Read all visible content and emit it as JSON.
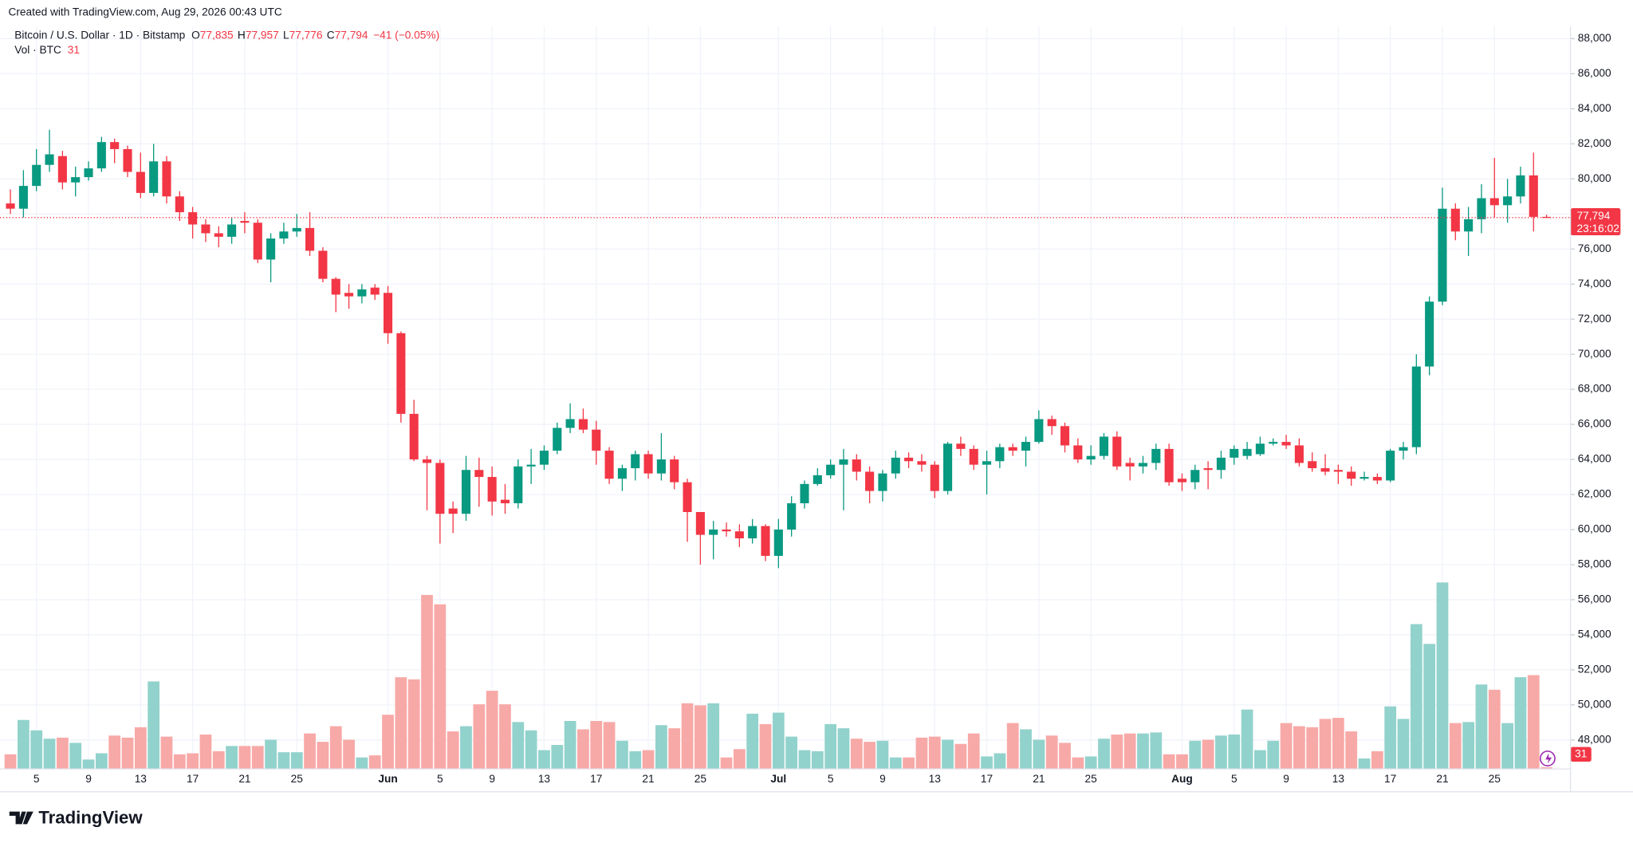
{
  "header": {
    "credit": "Created with TradingView.com, Aug 29, 2026 00:43 UTC"
  },
  "legend": {
    "symbol": "Bitcoin / U.S. Dollar · 1D · Bitstamp",
    "ohlc": [
      {
        "label": "O",
        "value": "77,835"
      },
      {
        "label": "H",
        "value": "77,957"
      },
      {
        "label": "L",
        "value": "77,776"
      },
      {
        "label": "C",
        "value": "77,794"
      }
    ],
    "change": "−41 (−0.05%)",
    "volume_name": "Vol · BTC",
    "volume_value": "31"
  },
  "price_tag": {
    "price": "77,794",
    "countdown": "23:16:02"
  },
  "volume_tag": "31",
  "logo": "TradingView",
  "chart_data": {
    "type": "candlestick",
    "up_color": "#089981",
    "down_color": "#f23645",
    "volume_up_color": "#92d2cc",
    "volume_down_color": "#f7a9a7",
    "ylim": [
      46350,
      88710
    ],
    "yticks": [
      {
        "value": 48000,
        "label": "48,000"
      },
      {
        "value": 50000,
        "label": "50,000"
      },
      {
        "value": 52000,
        "label": "52,000"
      },
      {
        "value": 54000,
        "label": "54,000"
      },
      {
        "value": 56000,
        "label": "56,000"
      },
      {
        "value": 58000,
        "label": "58,000"
      },
      {
        "value": 60000,
        "label": "60,000"
      },
      {
        "value": 62000,
        "label": "62,000"
      },
      {
        "value": 64000,
        "label": "64,000"
      },
      {
        "value": 66000,
        "label": "66,000"
      },
      {
        "value": 68000,
        "label": "68,000"
      },
      {
        "value": 70000,
        "label": "70,000"
      },
      {
        "value": 72000,
        "label": "72,000"
      },
      {
        "value": 74000,
        "label": "74,000"
      },
      {
        "value": 76000,
        "label": "76,000"
      },
      {
        "value": 78000,
        "label": "78,000"
      },
      {
        "value": 80000,
        "label": "80,000"
      },
      {
        "value": 82000,
        "label": "82,000"
      },
      {
        "value": 84000,
        "label": "84,000"
      },
      {
        "value": 86000,
        "label": "86,000"
      },
      {
        "value": 88000,
        "label": "88,000"
      }
    ],
    "volume_lim": [
      0,
      14260
    ],
    "grid": true,
    "categories": [
      null,
      null,
      "5",
      null,
      null,
      null,
      "9",
      null,
      null,
      null,
      "13",
      null,
      null,
      null,
      "17",
      null,
      null,
      null,
      "21",
      null,
      null,
      null,
      "25",
      null,
      null,
      null,
      null,
      null,
      null,
      "Jun",
      null,
      null,
      null,
      "5",
      null,
      null,
      null,
      "9",
      null,
      null,
      null,
      "13",
      null,
      null,
      null,
      "17",
      null,
      null,
      null,
      "21",
      null,
      null,
      null,
      "25",
      null,
      null,
      null,
      null,
      null,
      "Jul",
      null,
      null,
      null,
      "5",
      null,
      null,
      null,
      "9",
      null,
      null,
      null,
      "13",
      null,
      null,
      null,
      "17",
      null,
      null,
      null,
      "21",
      null,
      null,
      null,
      "25",
      null,
      null,
      null,
      null,
      null,
      null,
      "Aug",
      null,
      null,
      null,
      "5",
      null,
      null,
      null,
      "9",
      null,
      null,
      null,
      "13",
      null,
      null,
      null,
      "17",
      null,
      null,
      null,
      "21",
      null,
      null,
      null,
      "25",
      null,
      null,
      null,
      null
    ],
    "open": [
      78600,
      78300,
      79600,
      80800,
      81300,
      79800,
      80100,
      80600,
      82100,
      81700,
      80400,
      79200,
      81000,
      79000,
      78100,
      77400,
      76900,
      76700,
      77600,
      77500,
      75400,
      76600,
      77000,
      77200,
      75900,
      74300,
      73500,
      73300,
      73800,
      73500,
      71200,
      66600,
      64000,
      63800,
      61200,
      60900,
      63400,
      63000,
      61700,
      61500,
      63600,
      63700,
      64500,
      65800,
      66300,
      65700,
      64500,
      62900,
      63500,
      64300,
      63200,
      64000,
      62700,
      61000,
      59700,
      60000,
      59900,
      59500,
      60200,
      58500,
      60000,
      61500,
      62600,
      63100,
      63700,
      64000,
      63300,
      62200,
      63200,
      64100,
      63900,
      63700,
      62200,
      64900,
      64600,
      63700,
      63900,
      64700,
      64500,
      65000,
      66300,
      65900,
      64800,
      64000,
      64200,
      65300,
      63800,
      63600,
      63800,
      64600,
      62900,
      62700,
      63500,
      63400,
      64100,
      64200,
      64300,
      64900,
      65000,
      64800,
      63900,
      63500,
      63400,
      63300,
      62900,
      63000,
      62800,
      64500,
      64700,
      69300,
      73000,
      78300,
      77000,
      77700,
      78900,
      78500,
      79000,
      80200,
      77835
    ],
    "high": [
      79400,
      80500,
      81700,
      82800,
      81600,
      80700,
      81000,
      82400,
      82300,
      81900,
      81500,
      82000,
      81300,
      79300,
      78400,
      77700,
      77300,
      77800,
      78100,
      77700,
      76900,
      77500,
      78000,
      78100,
      76100,
      74400,
      74000,
      74000,
      74000,
      73900,
      71300,
      67400,
      64200,
      64000,
      61600,
      64200,
      64100,
      63600,
      62600,
      64000,
      64600,
      64800,
      66100,
      67200,
      66900,
      66200,
      64700,
      63700,
      64500,
      64500,
      65500,
      64200,
      62900,
      61000,
      60500,
      60400,
      60300,
      60600,
      60300,
      60600,
      61900,
      62800,
      63500,
      64000,
      64600,
      64300,
      63600,
      63400,
      64500,
      64400,
      64300,
      63900,
      65000,
      65300,
      64800,
      64500,
      64900,
      64900,
      65300,
      66800,
      66500,
      66100,
      65200,
      64800,
      65500,
      65600,
      64100,
      64200,
      64900,
      64900,
      63200,
      63700,
      63900,
      64500,
      64800,
      65000,
      65300,
      65200,
      65400,
      65200,
      64400,
      64300,
      63700,
      63600,
      63300,
      63200,
      64600,
      65000,
      70000,
      73300,
      79500,
      78600,
      78400,
      79700,
      81200,
      80000,
      80700,
      81500,
      77957
    ],
    "low": [
      78000,
      77800,
      79300,
      80400,
      79400,
      79000,
      79900,
      80400,
      80900,
      80100,
      78900,
      79000,
      78600,
      77600,
      76600,
      76400,
      76100,
      76300,
      76900,
      75200,
      74100,
      76300,
      76700,
      75600,
      74100,
      72400,
      72600,
      72900,
      73100,
      70600,
      66100,
      63900,
      61100,
      59200,
      59800,
      60500,
      61300,
      60800,
      60900,
      61200,
      62600,
      63400,
      64300,
      65500,
      65500,
      63700,
      62600,
      62200,
      62800,
      62900,
      62800,
      62300,
      59300,
      58000,
      58300,
      59600,
      59000,
      59200,
      58200,
      57800,
      59600,
      61200,
      62500,
      62900,
      61100,
      62800,
      61500,
      61600,
      62900,
      63500,
      63300,
      61800,
      62000,
      64200,
      63400,
      62000,
      63500,
      64200,
      63600,
      64900,
      65400,
      64400,
      63800,
      63700,
      64000,
      63400,
      62800,
      63200,
      63400,
      62500,
      62200,
      62300,
      62300,
      62900,
      63700,
      64000,
      64200,
      64800,
      64600,
      63600,
      63300,
      63100,
      62600,
      62500,
      62800,
      62600,
      62700,
      64000,
      64300,
      68800,
      72800,
      76500,
      75600,
      76900,
      77800,
      77500,
      78600,
      77000,
      77776
    ],
    "close": [
      78300,
      79600,
      80800,
      81400,
      79800,
      80100,
      80600,
      82100,
      81700,
      80400,
      79200,
      81000,
      79000,
      78100,
      77400,
      76900,
      76700,
      77400,
      77500,
      75400,
      76600,
      77000,
      77200,
      75900,
      74300,
      73400,
      73300,
      73700,
      73400,
      71200,
      66600,
      64000,
      63800,
      60900,
      60900,
      63400,
      63000,
      61600,
      61500,
      63600,
      63700,
      64500,
      65800,
      66300,
      65700,
      64500,
      62900,
      63500,
      64300,
      63200,
      64000,
      62700,
      61000,
      59700,
      60000,
      59900,
      59500,
      60200,
      58500,
      60000,
      61500,
      62600,
      63100,
      63700,
      64000,
      63300,
      62200,
      63200,
      64100,
      63900,
      63700,
      62200,
      64900,
      64600,
      63700,
      63900,
      64700,
      64500,
      65000,
      66300,
      65900,
      64800,
      64000,
      64200,
      65300,
      63600,
      63600,
      63800,
      64600,
      62700,
      62700,
      63400,
      63400,
      64100,
      64600,
      64600,
      64900,
      65000,
      64800,
      63800,
      63500,
      63300,
      63300,
      62900,
      63000,
      62800,
      64500,
      64700,
      69300,
      73000,
      78300,
      77000,
      77700,
      78900,
      78500,
      79000,
      80200,
      77835,
      77794
    ],
    "volume": [
      280,
      940,
      740,
      580,
      600,
      500,
      180,
      300,
      640,
      600,
      800,
      1680,
      620,
      280,
      300,
      660,
      340,
      440,
      440,
      440,
      560,
      320,
      320,
      680,
      520,
      820,
      560,
      220,
      260,
      1040,
      1760,
      1720,
      3340,
      3160,
      720,
      820,
      1240,
      1500,
      1240,
      900,
      740,
      360,
      460,
      920,
      760,
      920,
      900,
      540,
      340,
      360,
      840,
      780,
      1260,
      1220,
      1260,
      220,
      380,
      1060,
      860,
      1080,
      620,
      360,
      340,
      860,
      780,
      580,
      520,
      540,
      220,
      220,
      600,
      620,
      560,
      480,
      680,
      240,
      300,
      880,
      760,
      560,
      640,
      500,
      220,
      240,
      580,
      660,
      680,
      680,
      700,
      280,
      280,
      540,
      560,
      640,
      660,
      1140,
      360,
      540,
      880,
      820,
      800,
      960,
      980,
      720,
      200,
      340,
      1200,
      960,
      2780,
      2400,
      3580,
      880,
      900,
      1620,
      1520,
      880,
      1760,
      1800,
      31
    ]
  }
}
